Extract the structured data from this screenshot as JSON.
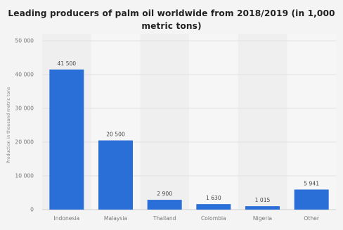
{
  "chart_data": {
    "type": "bar",
    "title_line1": "Leading producers of palm oil worldwide from 2018/2019 (in 1,000",
    "title_line2": "metric tons)",
    "ylabel": "Production in thousand metric tons",
    "xlabel": "",
    "categories": [
      "Indonesia",
      "Malaysia",
      "Thailand",
      "Colombia",
      "Nigeria",
      "Other"
    ],
    "values": [
      41500,
      20500,
      2900,
      1630,
      1015,
      5941
    ],
    "value_labels": [
      "41 500",
      "20 500",
      "2 900",
      "1 630",
      "1 015",
      "5 941"
    ],
    "yticks": [
      0,
      10000,
      20000,
      30000,
      40000,
      50000
    ],
    "ytick_labels": [
      "0",
      "10 000",
      "20 000",
      "30 000",
      "40 000",
      "50 000"
    ],
    "ylim": [
      0,
      50000
    ],
    "grid": true,
    "bar_color": "#2a6ed8"
  }
}
